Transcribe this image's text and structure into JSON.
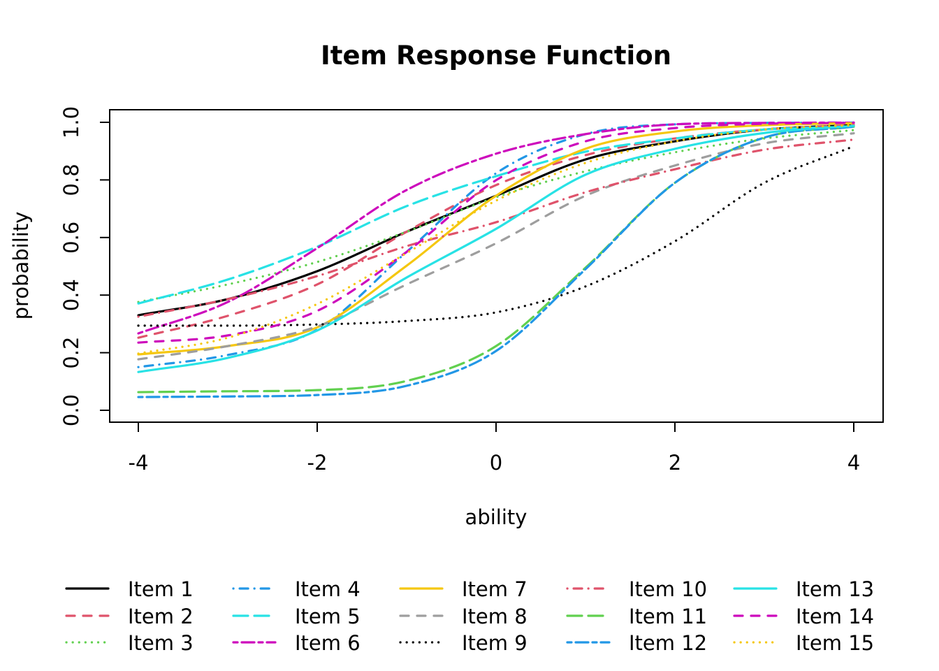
{
  "chart_data": {
    "type": "line",
    "title": "Item Response Function",
    "xlabel": "ability",
    "ylabel": "probability",
    "xlim": [
      -4,
      4
    ],
    "ylim": [
      0,
      1
    ],
    "x_ticks": [
      "-4",
      "-2",
      "0",
      "2",
      "4"
    ],
    "x_tick_values": [
      -4,
      -2,
      0,
      2,
      4
    ],
    "y_ticks": [
      "0.0",
      "0.2",
      "0.4",
      "0.6",
      "0.8",
      "1.0"
    ],
    "y_tick_values": [
      0,
      0.2,
      0.4,
      0.6,
      0.8,
      1.0
    ],
    "grid": false,
    "legend_position": "bottom",
    "x": [
      -4,
      -3,
      -2,
      -1,
      0,
      1,
      2,
      3,
      4
    ],
    "series": [
      {
        "name": "Item 1",
        "color": "#000000",
        "linetype": "solid",
        "values": [
          0.33,
          0.386,
          0.483,
          0.62,
          0.745,
          0.871,
          0.934,
          0.975,
          0.99
        ]
      },
      {
        "name": "Item 2",
        "color": "#DF536B",
        "linetype": "dashed",
        "values": [
          0.252,
          0.328,
          0.437,
          0.62,
          0.782,
          0.886,
          0.944,
          0.975,
          0.99
        ]
      },
      {
        "name": "Item 3",
        "color": "#61D04F",
        "linetype": "dotted",
        "values": [
          0.376,
          0.437,
          0.515,
          0.62,
          0.74,
          0.83,
          0.896,
          0.944,
          0.973
        ]
      },
      {
        "name": "Item 4",
        "color": "#2297E6",
        "linetype": "dotdash",
        "values": [
          0.15,
          0.192,
          0.28,
          0.55,
          0.823,
          0.959,
          0.993,
          0.998,
          0.999
        ]
      },
      {
        "name": "Item 5",
        "color": "#28E2E5",
        "linetype": "longdash",
        "values": [
          0.371,
          0.454,
          0.568,
          0.709,
          0.813,
          0.898,
          0.944,
          0.975,
          0.985
        ]
      },
      {
        "name": "Item 6",
        "color": "#CD0BBC",
        "linetype": "twodash",
        "values": [
          0.267,
          0.376,
          0.563,
          0.765,
          0.891,
          0.959,
          0.993,
          0.998,
          0.999
        ]
      },
      {
        "name": "Item 7",
        "color": "#F5C710",
        "linetype": "solid",
        "values": [
          0.194,
          0.223,
          0.288,
          0.502,
          0.745,
          0.908,
          0.968,
          0.99,
          0.997
        ]
      },
      {
        "name": "Item 8",
        "color": "#9E9E9E",
        "linetype": "dashed",
        "values": [
          0.177,
          0.223,
          0.291,
          0.437,
          0.58,
          0.745,
          0.85,
          0.927,
          0.962
        ]
      },
      {
        "name": "Item 9",
        "color": "#000000",
        "linetype": "dotted",
        "values": [
          0.294,
          0.294,
          0.298,
          0.31,
          0.34,
          0.43,
          0.587,
          0.79,
          0.917
        ]
      },
      {
        "name": "Item 10",
        "color": "#DF536B",
        "linetype": "dotdash",
        "values": [
          0.325,
          0.386,
          0.466,
          0.57,
          0.653,
          0.757,
          0.837,
          0.905,
          0.94
        ]
      },
      {
        "name": "Item 11",
        "color": "#61D04F",
        "linetype": "longdash",
        "values": [
          0.063,
          0.066,
          0.07,
          0.102,
          0.223,
          0.495,
          0.79,
          0.947,
          0.985
        ]
      },
      {
        "name": "Item 12",
        "color": "#2297E6",
        "linetype": "twodash",
        "values": [
          0.046,
          0.048,
          0.053,
          0.085,
          0.206,
          0.49,
          0.79,
          0.947,
          0.985
        ]
      },
      {
        "name": "Item 13",
        "color": "#28E2E5",
        "linetype": "solid",
        "values": [
          0.133,
          0.182,
          0.277,
          0.461,
          0.63,
          0.818,
          0.908,
          0.963,
          0.988
        ]
      },
      {
        "name": "Item 14",
        "color": "#CD0BBC",
        "linetype": "dashed",
        "values": [
          0.235,
          0.26,
          0.345,
          0.55,
          0.799,
          0.934,
          0.98,
          0.995,
          0.998
        ]
      },
      {
        "name": "Item 15",
        "color": "#F5C710",
        "linetype": "dotted",
        "values": [
          0.197,
          0.252,
          0.369,
          0.546,
          0.728,
          0.859,
          0.934,
          0.975,
          0.99
        ]
      }
    ]
  }
}
